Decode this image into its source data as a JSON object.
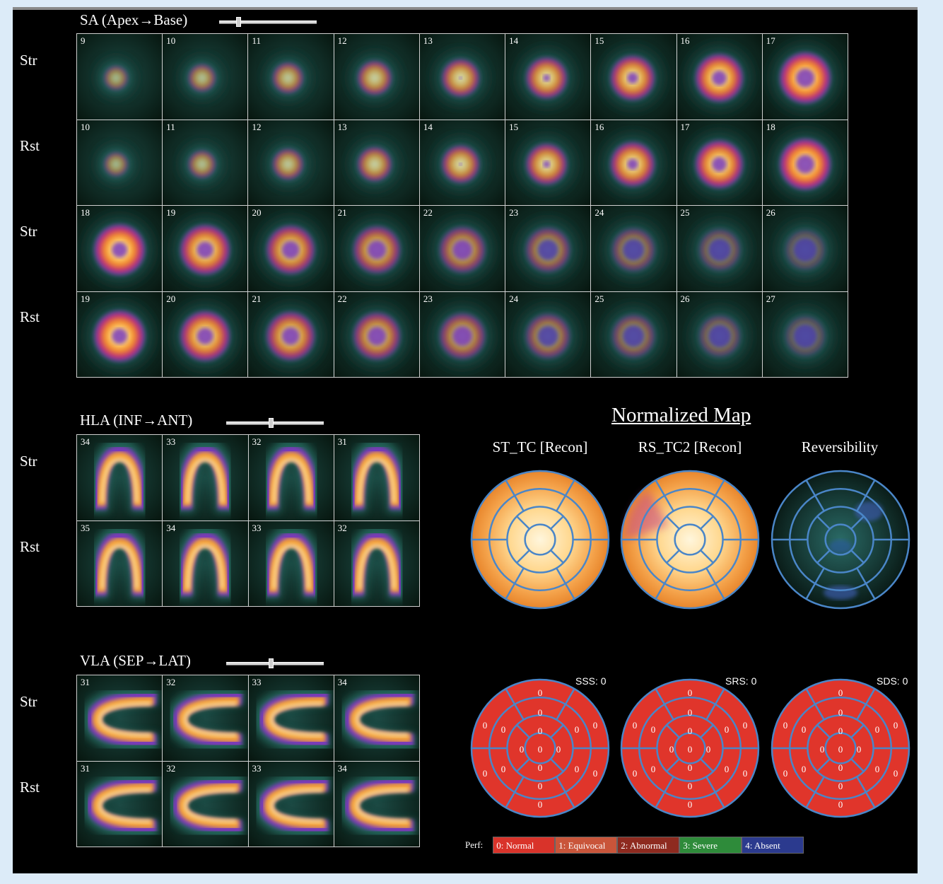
{
  "sa": {
    "title": "SA (Apex→Base)",
    "rows": [
      {
        "label": "Str",
        "kind": "sa",
        "slices": [
          "9",
          "10",
          "11",
          "12",
          "13",
          "14",
          "15",
          "16",
          "17"
        ]
      },
      {
        "label": "Rst",
        "kind": "sa",
        "slices": [
          "10",
          "11",
          "12",
          "13",
          "14",
          "15",
          "16",
          "17",
          "18"
        ]
      },
      {
        "label": "Str",
        "kind": "sa",
        "slices": [
          "18",
          "19",
          "20",
          "21",
          "22",
          "23",
          "24",
          "25",
          "26"
        ]
      },
      {
        "label": "Rst",
        "kind": "sa",
        "slices": [
          "19",
          "20",
          "21",
          "22",
          "23",
          "24",
          "25",
          "26",
          "27"
        ]
      }
    ],
    "slider_position": 0.22
  },
  "hla": {
    "title": "HLA (INF→ANT)",
    "rows": [
      {
        "label": "Str",
        "kind": "hla",
        "slices": [
          "34",
          "33",
          "32",
          "31"
        ]
      },
      {
        "label": "Rst",
        "kind": "hla",
        "slices": [
          "35",
          "34",
          "33",
          "32"
        ]
      }
    ],
    "slider_position": 0.45
  },
  "vla": {
    "title": "VLA (SEP→LAT)",
    "rows": [
      {
        "label": "Str",
        "kind": "vla",
        "slices": [
          "31",
          "32",
          "33",
          "34"
        ]
      },
      {
        "label": "Rst",
        "kind": "vla",
        "slices": [
          "31",
          "32",
          "33",
          "34"
        ]
      }
    ],
    "slider_position": 0.45
  },
  "normalized_map": {
    "title": "Normalized Map",
    "maps": [
      {
        "label": "ST_TC [Recon]",
        "kind": "stress"
      },
      {
        "label": "RS_TC2 [Recon]",
        "kind": "rest"
      },
      {
        "label": "Reversibility",
        "kind": "rev"
      }
    ]
  },
  "scores": [
    {
      "label": "SSS: 0",
      "segments": [
        "0",
        "0",
        "0",
        "0",
        "0",
        "0",
        "0",
        "0",
        "0",
        "0",
        "0",
        "0",
        "0",
        "0",
        "0",
        "0",
        "0"
      ]
    },
    {
      "label": "SRS: 0",
      "segments": [
        "0",
        "0",
        "0",
        "0",
        "0",
        "0",
        "0",
        "0",
        "0",
        "0",
        "0",
        "0",
        "0",
        "0",
        "0",
        "0",
        "0"
      ]
    },
    {
      "label": "SDS: 0",
      "segments": [
        "0",
        "0",
        "0",
        "0",
        "0",
        "0",
        "0",
        "0",
        "0",
        "0",
        "0",
        "0",
        "0",
        "0",
        "0",
        "0",
        "0"
      ]
    }
  ],
  "legend": {
    "title": "Perf:",
    "items": [
      {
        "label": "0: Normal",
        "color": "#d9332a"
      },
      {
        "label": "1: Equivocal",
        "color": "#c9553a"
      },
      {
        "label": "2: Abnormal",
        "color": "#8e2a1f"
      },
      {
        "label": "3: Severe",
        "color": "#2e8b3a"
      },
      {
        "label": "4: Absent",
        "color": "#2b3a8e"
      }
    ]
  },
  "colors": {
    "screen_bg": "#000000",
    "page_bg": "#dcebf8",
    "ring_line": "#4a86c8",
    "score_fill": "#e0352b"
  }
}
